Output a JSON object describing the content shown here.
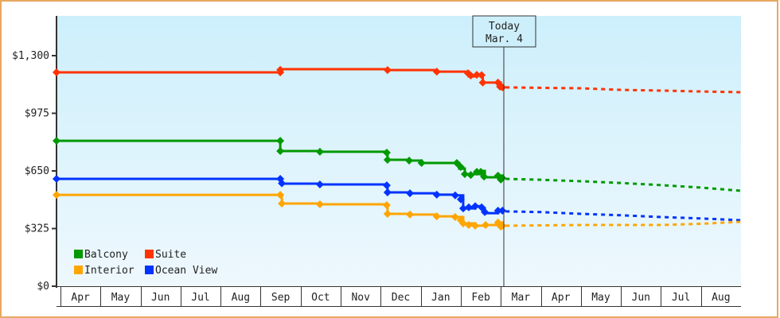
{
  "chart_data": {
    "type": "line",
    "title": "",
    "xlabel": "",
    "ylabel": "",
    "ylim": [
      0,
      1430
    ],
    "y_ticks": [
      {
        "value": 0,
        "label": "$0"
      },
      {
        "value": 325,
        "label": "$325"
      },
      {
        "value": 650,
        "label": "$650"
      },
      {
        "value": 975,
        "label": "$975"
      },
      {
        "value": 1300,
        "label": "$1,300"
      }
    ],
    "months": [
      "Apr",
      "May",
      "Jun",
      "Jul",
      "Aug",
      "Sep",
      "Oct",
      "Nov",
      "Dec",
      "Jan",
      "Feb",
      "Mar",
      "Apr",
      "May",
      "Jun",
      "Jul",
      "Aug"
    ],
    "today": {
      "line1": "Today",
      "line2": "Mar. 4",
      "month_index": 11.08
    },
    "legend": [
      {
        "name": "Balcony",
        "color": "#009900"
      },
      {
        "name": "Suite",
        "color": "#ff3300"
      },
      {
        "name": "Interior",
        "color": "#ffa500"
      },
      {
        "name": "Ocean View",
        "color": "#0033ff"
      }
    ],
    "series": [
      {
        "name": "Suite",
        "color": "#ff3300",
        "history": [
          [
            -0.1,
            1206
          ],
          [
            5.49,
            1206
          ],
          [
            5.49,
            1224
          ],
          [
            8.17,
            1219
          ],
          [
            9.4,
            1210
          ],
          [
            10.18,
            1210
          ],
          [
            10.2,
            1183
          ],
          [
            10.4,
            1192
          ],
          [
            10.5,
            1183
          ],
          [
            10.53,
            1192
          ],
          [
            10.55,
            1148
          ],
          [
            10.93,
            1148
          ],
          [
            11.0,
            1121
          ],
          [
            11.04,
            1121
          ]
        ],
        "markers": [
          [
            -0.1,
            1206
          ],
          [
            5.49,
            1206
          ],
          [
            5.49,
            1220
          ],
          [
            8.17,
            1219
          ],
          [
            9.4,
            1210
          ],
          [
            10.18,
            1201
          ],
          [
            10.25,
            1188
          ],
          [
            10.4,
            1192
          ],
          [
            10.52,
            1190
          ],
          [
            10.55,
            1148
          ],
          [
            10.93,
            1148
          ],
          [
            10.98,
            1125
          ],
          [
            11.04,
            1121
          ]
        ],
        "forecast": [
          [
            11.12,
            1121
          ],
          [
            13.0,
            1116
          ],
          [
            14.0,
            1107
          ],
          [
            15.0,
            1103
          ],
          [
            16.0,
            1098
          ],
          [
            17.0,
            1094
          ]
        ]
      },
      {
        "name": "Balcony",
        "color": "#009900",
        "history": [
          [
            -0.1,
            820
          ],
          [
            5.49,
            820
          ],
          [
            5.49,
            762
          ],
          [
            6.48,
            758
          ],
          [
            8.15,
            753
          ],
          [
            8.17,
            713
          ],
          [
            8.71,
            708
          ],
          [
            9.02,
            695
          ],
          [
            9.9,
            695
          ],
          [
            9.96,
            663
          ],
          [
            10.1,
            632
          ],
          [
            10.4,
            632
          ],
          [
            10.5,
            650
          ],
          [
            10.6,
            614
          ],
          [
            10.93,
            623
          ],
          [
            11.04,
            601
          ]
        ],
        "markers": [
          [
            -0.1,
            820
          ],
          [
            5.49,
            820
          ],
          [
            5.49,
            762
          ],
          [
            6.48,
            758
          ],
          [
            8.15,
            753
          ],
          [
            8.17,
            713
          ],
          [
            8.71,
            708
          ],
          [
            9.02,
            695
          ],
          [
            9.9,
            695
          ],
          [
            10.0,
            672
          ],
          [
            10.1,
            632
          ],
          [
            10.25,
            627
          ],
          [
            10.4,
            645
          ],
          [
            10.5,
            645
          ],
          [
            10.58,
            618
          ],
          [
            10.93,
            623
          ],
          [
            11.0,
            601
          ],
          [
            11.04,
            610
          ]
        ],
        "forecast": [
          [
            11.12,
            605
          ],
          [
            12.0,
            600
          ],
          [
            13.0,
            592
          ],
          [
            14.0,
            582
          ],
          [
            15.0,
            570
          ],
          [
            16.0,
            556
          ],
          [
            17.0,
            538
          ]
        ]
      },
      {
        "name": "Ocean View",
        "color": "#0033ff",
        "history": [
          [
            -0.1,
            605
          ],
          [
            5.49,
            605
          ],
          [
            5.53,
            578
          ],
          [
            6.48,
            574
          ],
          [
            8.15,
            569
          ],
          [
            8.17,
            529
          ],
          [
            8.73,
            524
          ],
          [
            9.4,
            516
          ],
          [
            9.86,
            512
          ],
          [
            10.06,
            439
          ],
          [
            10.36,
            451
          ],
          [
            10.52,
            439
          ],
          [
            10.6,
            412
          ],
          [
            10.93,
            426
          ],
          [
            11.04,
            426
          ]
        ],
        "markers": [
          [
            -0.1,
            605
          ],
          [
            5.49,
            605
          ],
          [
            5.53,
            580
          ],
          [
            6.48,
            574
          ],
          [
            8.15,
            569
          ],
          [
            8.17,
            529
          ],
          [
            8.73,
            524
          ],
          [
            9.4,
            516
          ],
          [
            9.86,
            512
          ],
          [
            10.0,
            490
          ],
          [
            10.06,
            439
          ],
          [
            10.2,
            445
          ],
          [
            10.36,
            451
          ],
          [
            10.52,
            445
          ],
          [
            10.6,
            418
          ],
          [
            10.93,
            426
          ],
          [
            11.04,
            426
          ]
        ],
        "forecast": [
          [
            11.12,
            422
          ],
          [
            12.0,
            418
          ],
          [
            13.0,
            408
          ],
          [
            14.0,
            400
          ],
          [
            15.0,
            390
          ],
          [
            16.0,
            382
          ],
          [
            17.0,
            372
          ]
        ]
      },
      {
        "name": "Interior",
        "color": "#ffa500",
        "history": [
          [
            -0.1,
            515
          ],
          [
            5.49,
            515
          ],
          [
            5.53,
            466
          ],
          [
            6.48,
            462
          ],
          [
            8.15,
            457
          ],
          [
            8.17,
            408
          ],
          [
            8.73,
            404
          ],
          [
            9.4,
            394
          ],
          [
            9.86,
            390
          ],
          [
            10.06,
            354
          ],
          [
            10.36,
            341
          ],
          [
            10.62,
            345
          ],
          [
            10.93,
            359
          ],
          [
            11.04,
            341
          ]
        ],
        "markers": [
          [
            -0.1,
            515
          ],
          [
            5.49,
            515
          ],
          [
            5.53,
            466
          ],
          [
            6.48,
            462
          ],
          [
            8.15,
            457
          ],
          [
            8.17,
            408
          ],
          [
            8.73,
            404
          ],
          [
            9.4,
            394
          ],
          [
            9.86,
            390
          ],
          [
            10.0,
            372
          ],
          [
            10.06,
            354
          ],
          [
            10.2,
            345
          ],
          [
            10.36,
            341
          ],
          [
            10.62,
            345
          ],
          [
            10.93,
            359
          ],
          [
            11.0,
            336
          ],
          [
            11.04,
            341
          ]
        ],
        "forecast": [
          [
            11.12,
            341
          ],
          [
            12.0,
            343
          ],
          [
            13.0,
            345
          ],
          [
            14.0,
            345
          ],
          [
            15.0,
            345
          ],
          [
            16.0,
            352
          ],
          [
            17.0,
            363
          ]
        ]
      }
    ]
  }
}
